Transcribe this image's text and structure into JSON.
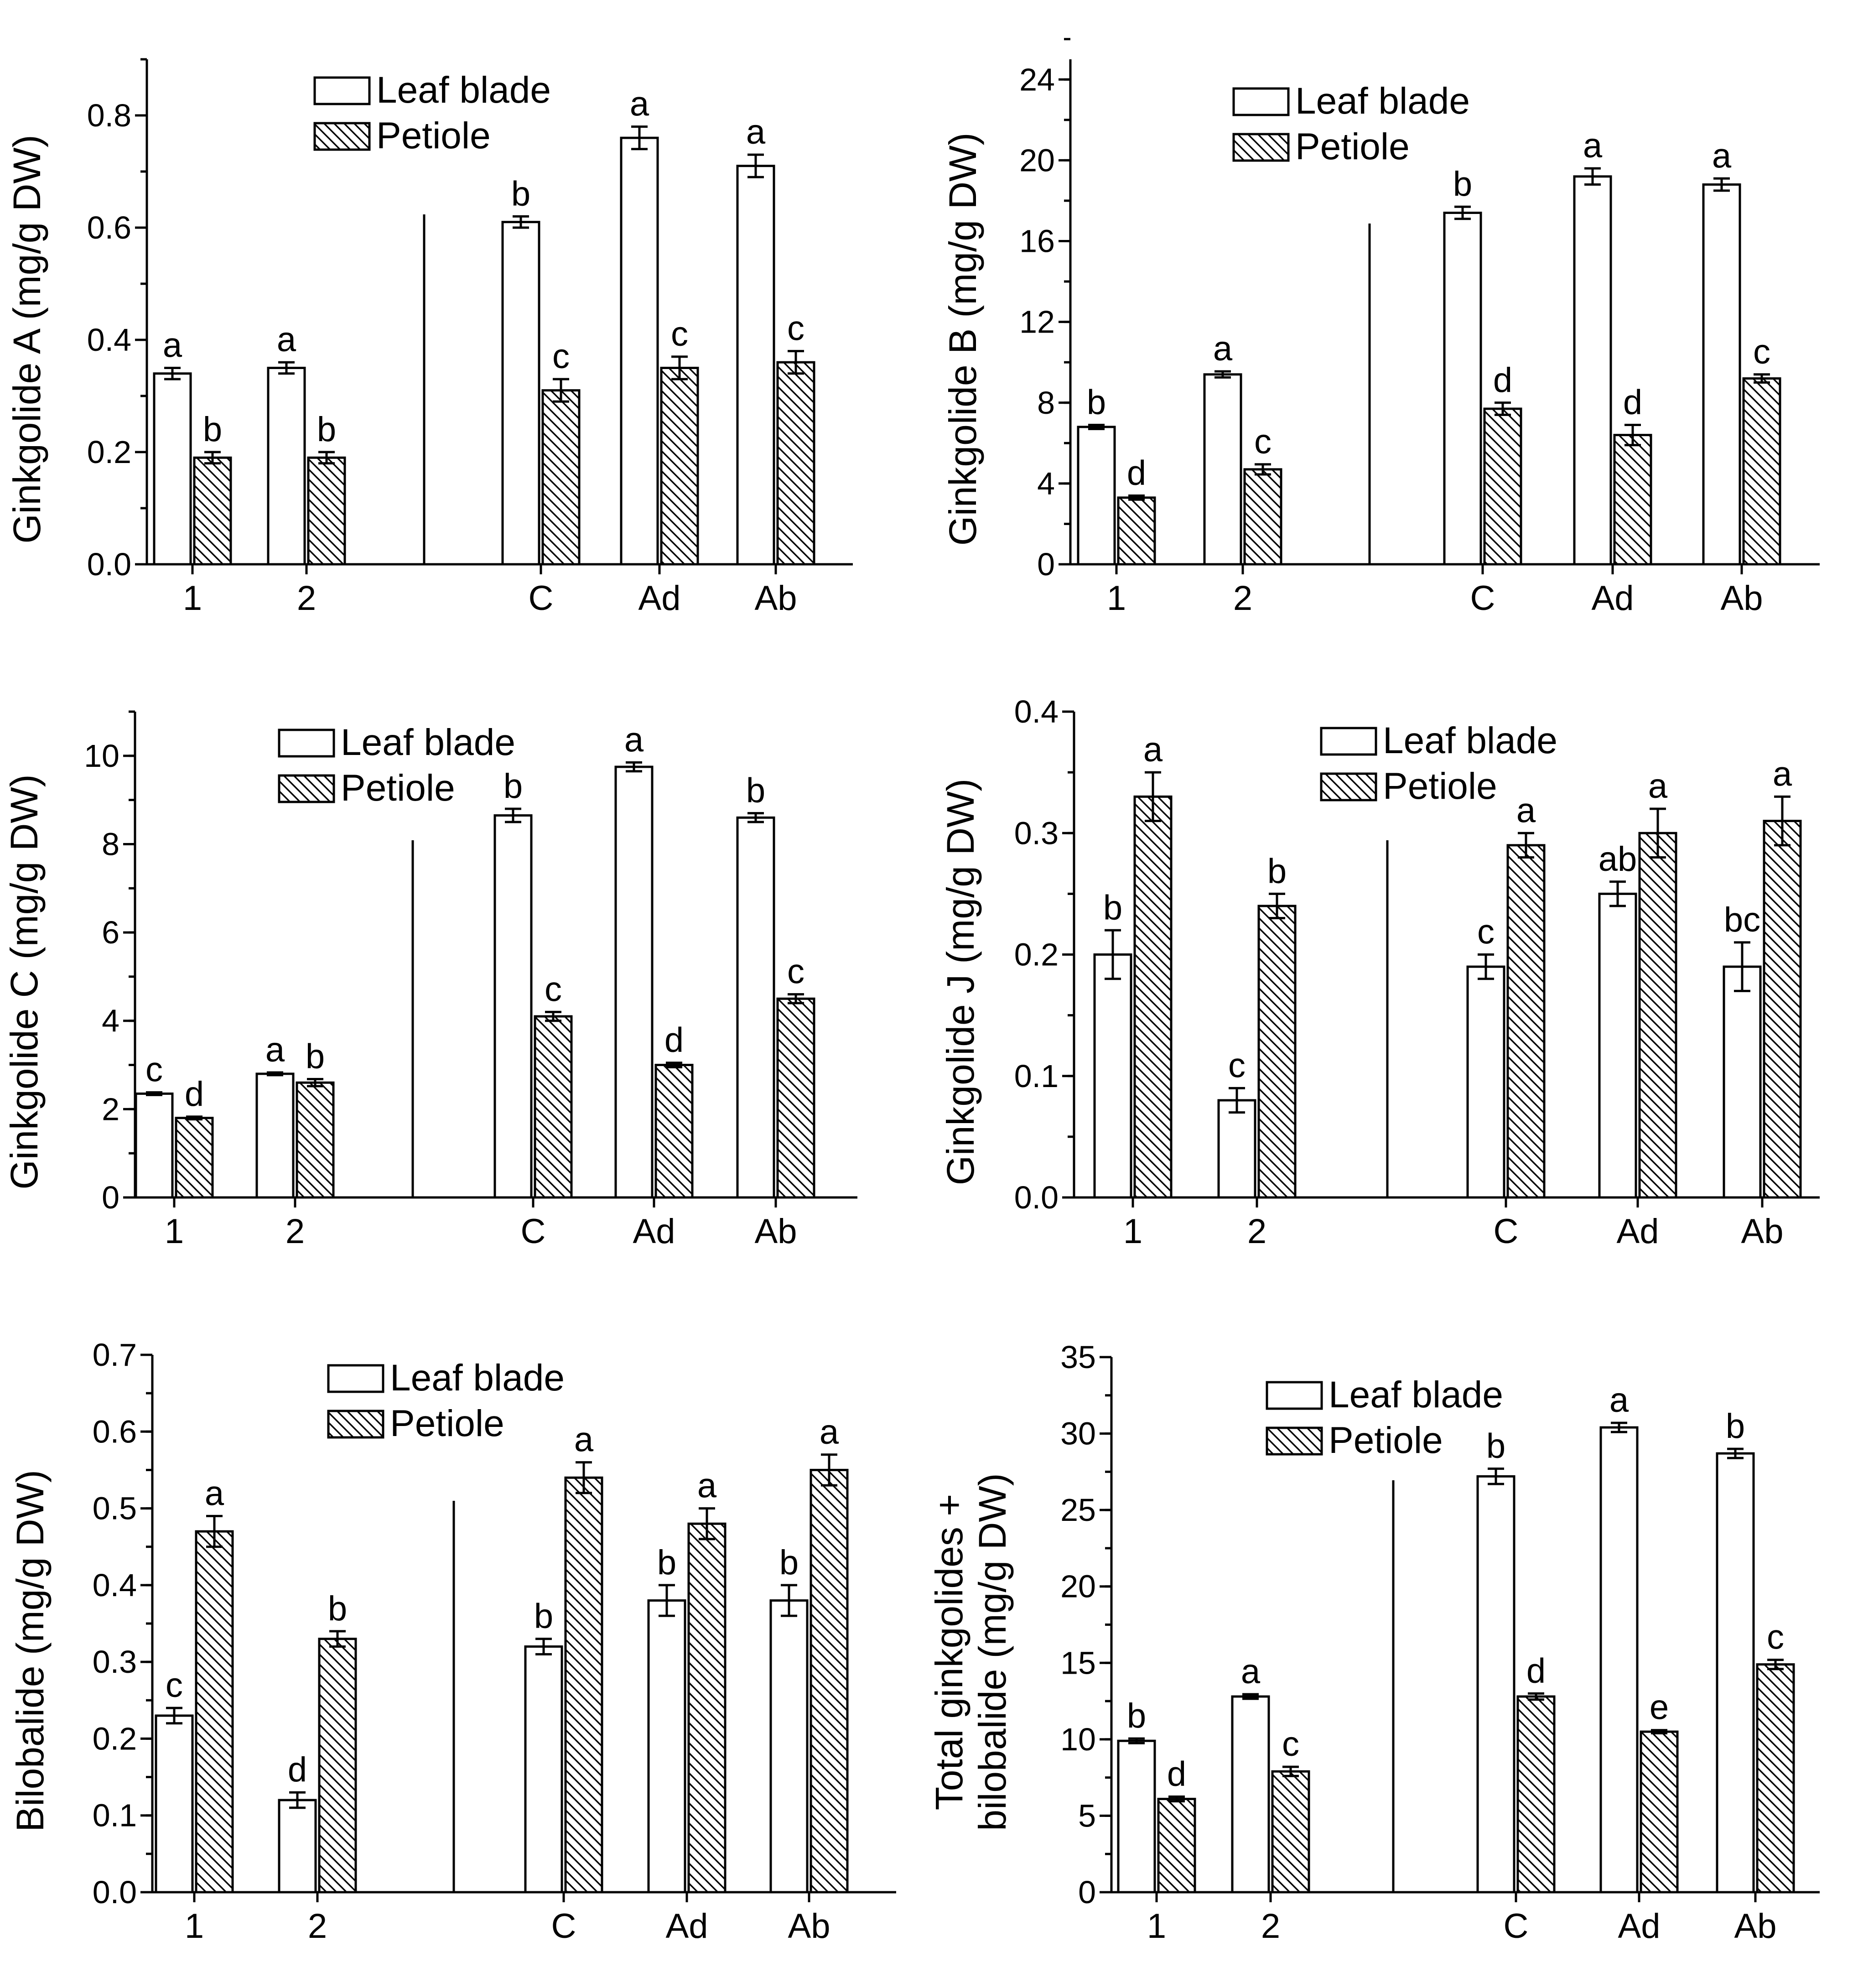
{
  "chart_data": [
    {
      "type": "bar",
      "ylabel": "Ginkgolide A (mg/g DW)",
      "ylim": [
        0,
        0.9
      ],
      "yticks": [
        0.0,
        0.2,
        0.4,
        0.6,
        0.8
      ],
      "ytick_labels": [
        "0.0",
        "0.2",
        "0.4",
        "0.6",
        "0.8"
      ],
      "ytick_minor": 0.1,
      "categories": [
        "1",
        "2",
        "C",
        "Ad",
        "Ab"
      ],
      "legend": [
        "Leaf blade",
        "Petiole"
      ],
      "series": [
        {
          "name": "Leaf blade",
          "values": [
            0.34,
            0.35,
            0.61,
            0.76,
            0.71
          ],
          "errors": [
            0.01,
            0.01,
            0.01,
            0.02,
            0.02
          ],
          "labels": [
            "a",
            "a",
            "b",
            "a",
            "a"
          ]
        },
        {
          "name": "Petiole",
          "values": [
            0.19,
            0.19,
            0.31,
            0.35,
            0.36
          ],
          "errors": [
            0.01,
            0.01,
            0.02,
            0.02,
            0.02
          ],
          "labels": [
            "b",
            "b",
            "c",
            "c",
            "c"
          ]
        }
      ]
    },
    {
      "type": "bar",
      "ylabel": "Ginkgolide B (mg/g DW)",
      "ylim": [
        0,
        25
      ],
      "yticks": [
        0,
        4,
        8,
        12,
        16,
        20,
        24
      ],
      "ytick_labels": [
        "0",
        "4",
        "8",
        "12",
        "16",
        "20",
        "24"
      ],
      "ytick_minor": 2,
      "categories": [
        "1",
        "2",
        "C",
        "Ad",
        "Ab"
      ],
      "legend": [
        "Leaf blade",
        "Petiole"
      ],
      "series": [
        {
          "name": "Leaf blade",
          "values": [
            6.8,
            9.4,
            17.4,
            19.2,
            18.8
          ],
          "errors": [
            0.1,
            0.15,
            0.3,
            0.4,
            0.3
          ],
          "labels": [
            "b",
            "a",
            "b",
            "a",
            "a"
          ]
        },
        {
          "name": "Petiole",
          "values": [
            3.3,
            4.7,
            7.7,
            6.4,
            9.2
          ],
          "errors": [
            0.1,
            0.25,
            0.3,
            0.5,
            0.2
          ],
          "labels": [
            "d",
            "c",
            "d",
            "d",
            "c"
          ]
        }
      ]
    },
    {
      "type": "bar",
      "ylabel": "Ginkgolide C (mg/g DW)",
      "ylim": [
        0,
        11
      ],
      "yticks": [
        0,
        2,
        4,
        6,
        8,
        10
      ],
      "ytick_labels": [
        "0",
        "2",
        "4",
        "6",
        "8",
        "10"
      ],
      "ytick_minor": 1,
      "categories": [
        "1",
        "2",
        "C",
        "Ad",
        "Ab"
      ],
      "legend": [
        "Leaf blade",
        "Petiole"
      ],
      "series": [
        {
          "name": "Leaf blade",
          "values": [
            2.35,
            2.8,
            8.65,
            9.75,
            8.6
          ],
          "errors": [
            0.03,
            0.03,
            0.15,
            0.1,
            0.1
          ],
          "labels": [
            "c",
            "a",
            "b",
            "a",
            "b"
          ]
        },
        {
          "name": "Petiole",
          "values": [
            1.8,
            2.6,
            4.1,
            3.0,
            4.5
          ],
          "errors": [
            0.03,
            0.08,
            0.1,
            0.05,
            0.1
          ],
          "labels": [
            "d",
            "b",
            "c",
            "d",
            "c"
          ]
        }
      ]
    },
    {
      "type": "bar",
      "ylabel": "Ginkgolide J (mg/g DW)",
      "ylim": [
        0,
        0.4
      ],
      "yticks": [
        0.0,
        0.1,
        0.2,
        0.3,
        0.4
      ],
      "ytick_labels": [
        "0.0",
        "0.1",
        "0.2",
        "0.3",
        "0.4"
      ],
      "ytick_minor": 0.05,
      "categories": [
        "1",
        "2",
        "C",
        "Ad",
        "Ab"
      ],
      "legend": [
        "Leaf blade",
        "Petiole"
      ],
      "series": [
        {
          "name": "Leaf blade",
          "values": [
            0.2,
            0.08,
            0.19,
            0.25,
            0.19
          ],
          "errors": [
            0.02,
            0.01,
            0.01,
            0.01,
            0.02
          ],
          "labels": [
            "b",
            "c",
            "c",
            "ab",
            "bc"
          ]
        },
        {
          "name": "Petiole",
          "values": [
            0.33,
            0.24,
            0.29,
            0.3,
            0.31
          ],
          "errors": [
            0.02,
            0.01,
            0.01,
            0.02,
            0.02
          ],
          "labels": [
            "a",
            "b",
            "a",
            "a",
            "a"
          ]
        }
      ]
    },
    {
      "type": "bar",
      "ylabel": "Bilobalide (mg/g DW)",
      "ylim": [
        0,
        0.7
      ],
      "yticks": [
        0.0,
        0.1,
        0.2,
        0.3,
        0.4,
        0.5,
        0.6,
        0.7
      ],
      "ytick_labels": [
        "0.0",
        "0.1",
        "0.2",
        "0.3",
        "0.4",
        "0.5",
        "0.6",
        "0.7"
      ],
      "ytick_minor": 0.05,
      "categories": [
        "1",
        "2",
        "C",
        "Ad",
        "Ab"
      ],
      "legend": [
        "Leaf blade",
        "Petiole"
      ],
      "series": [
        {
          "name": "Leaf blade",
          "values": [
            0.23,
            0.12,
            0.32,
            0.38,
            0.38
          ],
          "errors": [
            0.01,
            0.01,
            0.01,
            0.02,
            0.02
          ],
          "labels": [
            "c",
            "d",
            "b",
            "b",
            "b"
          ]
        },
        {
          "name": "Petiole",
          "values": [
            0.47,
            0.33,
            0.54,
            0.48,
            0.55
          ],
          "errors": [
            0.02,
            0.01,
            0.02,
            0.02,
            0.02
          ],
          "labels": [
            "a",
            "b",
            "a",
            "a",
            "a"
          ]
        }
      ]
    },
    {
      "type": "bar",
      "ylabel": [
        "Total ginkgolides +",
        "bilobalide (mg/g DW)"
      ],
      "ylim": [
        0,
        35
      ],
      "yticks": [
        0,
        5,
        10,
        15,
        20,
        25,
        30,
        35
      ],
      "ytick_labels": [
        "0",
        "5",
        "10",
        "15",
        "20",
        "25",
        "30",
        "35"
      ],
      "ytick_minor": 2.5,
      "categories": [
        "1",
        "2",
        "C",
        "Ad",
        "Ab"
      ],
      "legend": [
        "Leaf blade",
        "Petiole"
      ],
      "series": [
        {
          "name": "Leaf blade",
          "values": [
            9.9,
            12.8,
            27.2,
            30.4,
            28.7
          ],
          "errors": [
            0.15,
            0.15,
            0.5,
            0.3,
            0.3
          ],
          "labels": [
            "b",
            "a",
            "b",
            "a",
            "b"
          ]
        },
        {
          "name": "Petiole",
          "values": [
            6.1,
            7.9,
            12.8,
            10.5,
            14.9
          ],
          "errors": [
            0.15,
            0.3,
            0.2,
            0.1,
            0.3
          ],
          "labels": [
            "d",
            "c",
            "d",
            "e",
            "c"
          ]
        }
      ]
    }
  ]
}
